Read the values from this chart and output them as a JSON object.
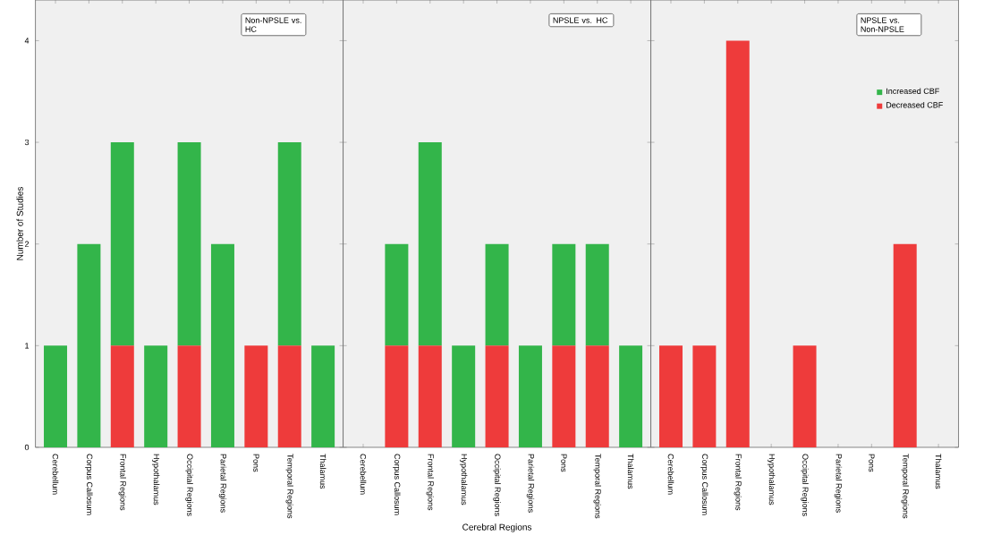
{
  "chart_data": [
    {
      "type": "bar",
      "stacked": true,
      "ylabel": "Number of Studies",
      "annotations": [
        "Non-NPSLE vs. HC"
      ],
      "categories": [
        "Cerebellum",
        "Corpus Callosum",
        "Frontal Regions",
        "Hypothalamus",
        "Occipital Regions",
        "Parietal Regions",
        "Pons",
        "Temporal Regions",
        "Thalamus"
      ],
      "ylim": [
        0,
        4.4
      ],
      "yticks": [
        0,
        1,
        2,
        3,
        4
      ],
      "legend": false,
      "series": [
        {
          "color": "#ee3b3b",
          "values": [
            0,
            0,
            1,
            0,
            1,
            0,
            1,
            1,
            0
          ]
        },
        {
          "color": "#33b54a",
          "values": [
            1,
            2,
            2,
            1,
            2,
            2,
            0,
            2,
            1
          ]
        }
      ]
    },
    {
      "type": "bar",
      "stacked": true,
      "xlabel": "Cerebral Regions",
      "annotations": [
        "NPSLE vs. HC"
      ],
      "categories": [
        "Cerebellum",
        "Corpus Callosum",
        "Frontal Regions",
        "Hypothalamus",
        "Occipital Regions",
        "Parietal Regions",
        "Pons",
        "Temporal Regions",
        "Thalamus"
      ],
      "ylim": [
        0,
        4.4
      ],
      "yticks": [
        0,
        1,
        2,
        3,
        4
      ],
      "tick_labels": "x",
      "legend": false,
      "series": [
        {
          "color": "#ee3b3b",
          "values": [
            0,
            1,
            1,
            0,
            1,
            0,
            1,
            1,
            0
          ]
        },
        {
          "color": "#33b54a",
          "values": [
            0,
            1,
            2,
            1,
            1,
            1,
            1,
            1,
            1
          ]
        }
      ]
    },
    {
      "type": "bar",
      "stacked": true,
      "annotations": [
        "NPSLE vs. Non-NPSLE"
      ],
      "categories": [
        "Cerebellum",
        "Corpus Callosum",
        "Frontal Regions",
        "Hypothalamus",
        "Occipital Regions",
        "Parietal Regions",
        "Pons",
        "Temporal Regions",
        "Thalamus"
      ],
      "ylim": [
        0,
        4.4
      ],
      "yticks": [
        0,
        1,
        2,
        3,
        4
      ],
      "tick_labels": "x",
      "legend": "top right",
      "series": [
        {
          "name": "Decreased CBF",
          "color": "#ee3b3b",
          "values": [
            1,
            1,
            4,
            0,
            1,
            0,
            0,
            2,
            0
          ]
        },
        {
          "name": "Increased CBF",
          "color": "#33b54a",
          "values": [
            0,
            0,
            0,
            0,
            0,
            0,
            0,
            0,
            0
          ]
        }
      ]
    }
  ]
}
